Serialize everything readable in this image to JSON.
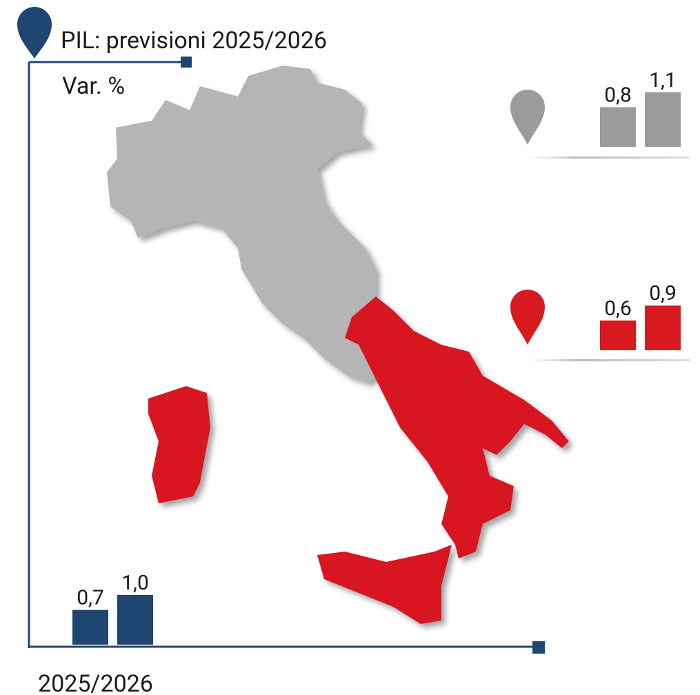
{
  "header": {
    "title": "PIL: previsioni 2025/2026",
    "subtitle": "Var. %"
  },
  "footer": "2025/2026",
  "chart_data": [
    {
      "type": "bar",
      "color": "#9b9b9b",
      "values": [
        0.8,
        1.1
      ],
      "value_labels": [
        "0,8",
        "1,1"
      ]
    },
    {
      "type": "bar",
      "color": "#d71920",
      "values": [
        0.6,
        0.9
      ],
      "value_labels": [
        "0,6",
        "0,9"
      ]
    },
    {
      "type": "bar",
      "color": "#1f4571",
      "values": [
        0.7,
        1.0
      ],
      "value_labels": [
        "0,7",
        "1,0"
      ]
    }
  ]
}
